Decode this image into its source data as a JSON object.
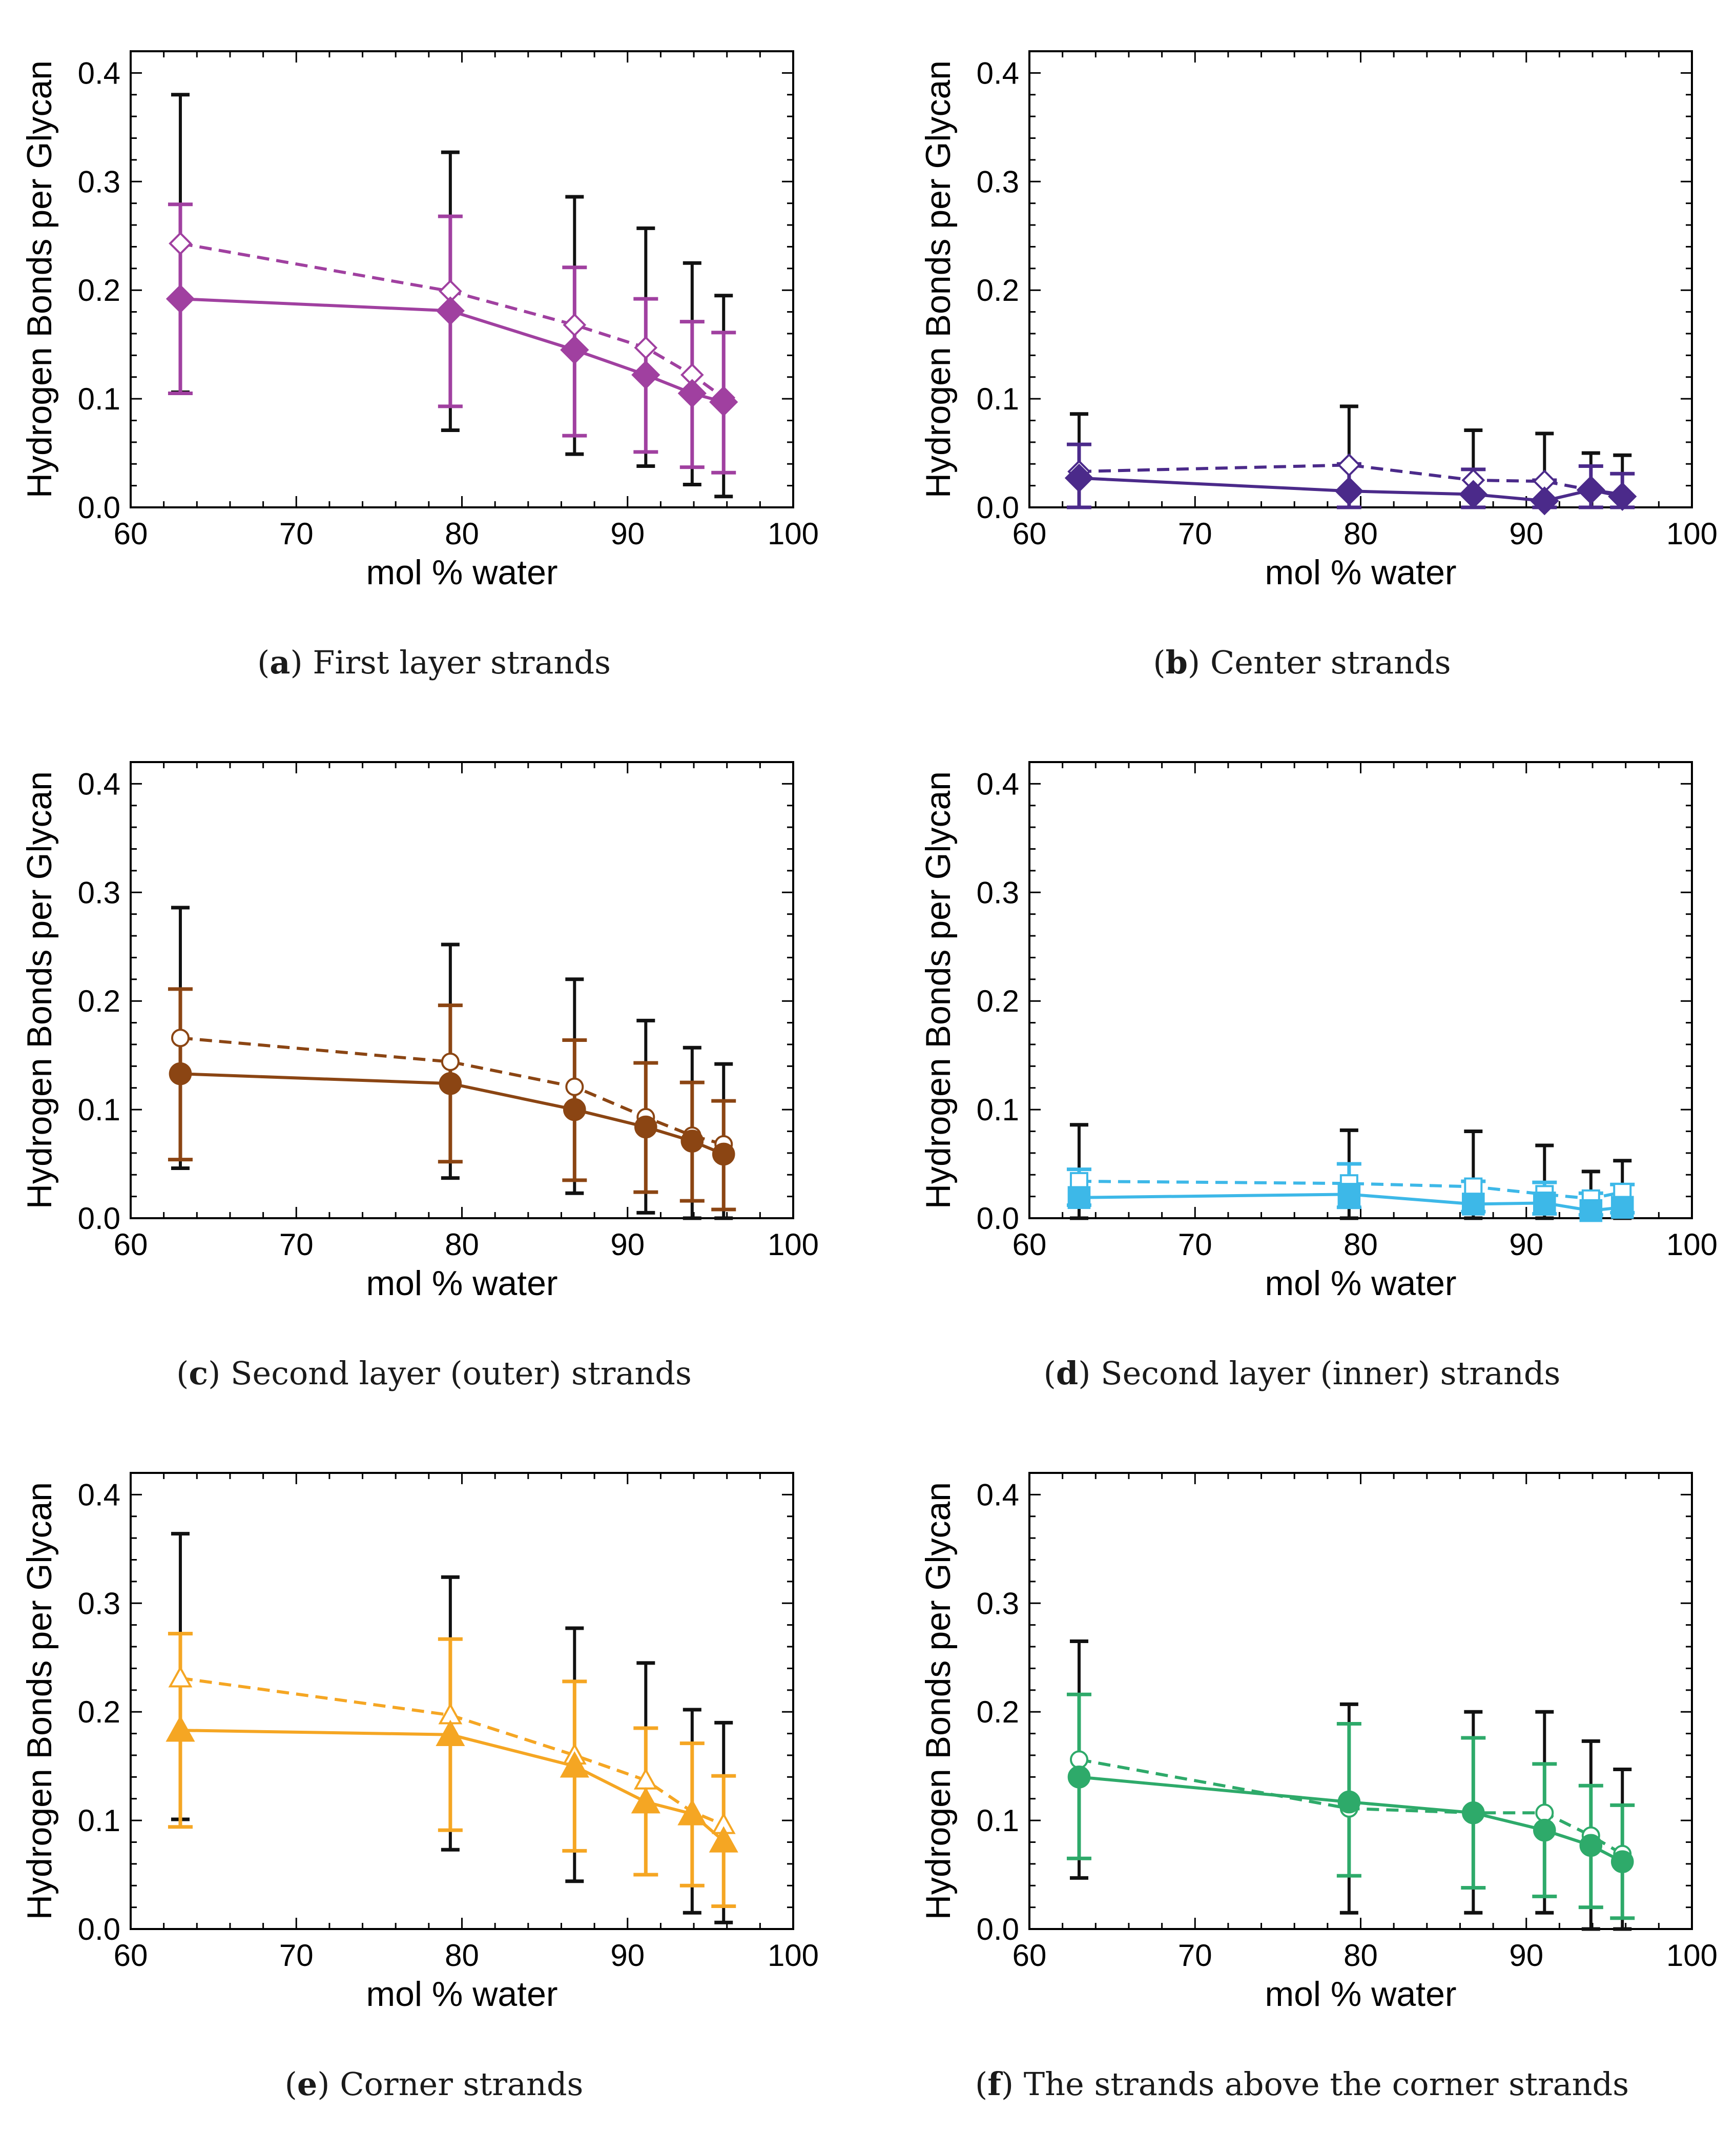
{
  "figure": {
    "xlabel": "mol % water",
    "ylabel": "Hydrogen Bonds per Glycan",
    "x_ticks": [
      "60",
      "70",
      "80",
      "90",
      "100"
    ],
    "y_ticks": [
      "0.0",
      "0.1",
      "0.2",
      "0.3",
      "0.4"
    ]
  },
  "chart_data": [
    {
      "id": "a",
      "type": "line",
      "letter": "a",
      "caption": "First layer strands",
      "xlabel": "mol % water",
      "ylabel": "Hydrogen Bonds per Glycan",
      "xlim": [
        60,
        100
      ],
      "ylim": [
        0,
        0.42
      ],
      "marker": "diamond",
      "color": "#a040a0",
      "x": [
        63,
        79.3,
        86.8,
        91.1,
        93.9,
        95.8
      ],
      "series": [
        {
          "name": "solid",
          "style": "solid",
          "filled": true,
          "values": [
            0.192,
            0.181,
            0.145,
            0.122,
            0.105,
            0.097
          ],
          "err_low": [
            0.106,
            0.071,
            0.049,
            0.038,
            0.021,
            0.01
          ],
          "err_high": [
            0.38,
            0.327,
            0.286,
            0.257,
            0.225,
            0.195
          ]
        },
        {
          "name": "dashed",
          "style": "dashed",
          "filled": false,
          "values": [
            0.243,
            0.199,
            0.168,
            0.147,
            0.122,
            0.101
          ],
          "err_low": [
            0.105,
            0.093,
            0.066,
            0.051,
            0.037,
            0.032
          ],
          "err_high": [
            0.279,
            0.268,
            0.221,
            0.192,
            0.171,
            0.161
          ]
        }
      ]
    },
    {
      "id": "b",
      "type": "line",
      "letter": "b",
      "caption": "Center strands",
      "xlabel": "mol % water",
      "ylabel": "Hydrogen Bonds per Glycan",
      "xlim": [
        60,
        100
      ],
      "ylim": [
        0,
        0.42
      ],
      "marker": "diamond",
      "color": "#4b2a8a",
      "x": [
        63,
        79.3,
        86.8,
        91.1,
        93.9,
        95.8
      ],
      "series": [
        {
          "name": "solid",
          "style": "solid",
          "filled": true,
          "values": [
            0.027,
            0.015,
            0.012,
            0.006,
            0.016,
            0.01
          ],
          "err_low": [
            0.0,
            0.0,
            0.0,
            0.0,
            0.0,
            0.0
          ],
          "err_high": [
            0.086,
            0.093,
            0.071,
            0.068,
            0.05,
            0.048
          ]
        },
        {
          "name": "dashed",
          "style": "dashed",
          "filled": false,
          "values": [
            0.033,
            0.039,
            0.025,
            0.024,
            0.016,
            0.012
          ],
          "err_low": [
            0.0,
            0.0,
            0.0,
            0.0,
            0.0,
            0.0
          ],
          "err_high": [
            0.058,
            0.04,
            0.035,
            0.025,
            0.038,
            0.031
          ]
        }
      ]
    },
    {
      "id": "c",
      "type": "line",
      "letter": "c",
      "caption": "Second layer (outer) strands",
      "xlabel": "mol % water",
      "ylabel": "Hydrogen Bonds per Glycan",
      "xlim": [
        60,
        100
      ],
      "ylim": [
        0,
        0.42
      ],
      "marker": "circle",
      "color": "#8b4513",
      "x": [
        63,
        79.3,
        86.8,
        91.1,
        93.9,
        95.8
      ],
      "series": [
        {
          "name": "solid",
          "style": "solid",
          "filled": true,
          "values": [
            0.133,
            0.124,
            0.1,
            0.084,
            0.071,
            0.059
          ],
          "err_low": [
            0.046,
            0.037,
            0.023,
            0.005,
            0.0,
            0.0
          ],
          "err_high": [
            0.286,
            0.252,
            0.22,
            0.182,
            0.157,
            0.142
          ]
        },
        {
          "name": "dashed",
          "style": "dashed",
          "filled": false,
          "values": [
            0.166,
            0.144,
            0.121,
            0.093,
            0.076,
            0.068
          ],
          "err_low": [
            0.054,
            0.052,
            0.035,
            0.024,
            0.016,
            0.008
          ],
          "err_high": [
            0.211,
            0.196,
            0.164,
            0.143,
            0.125,
            0.108
          ]
        }
      ]
    },
    {
      "id": "d",
      "type": "line",
      "letter": "d",
      "caption": "Second layer (inner) strands",
      "xlabel": "mol % water",
      "ylabel": "Hydrogen Bonds per Glycan",
      "xlim": [
        60,
        100
      ],
      "ylim": [
        0,
        0.42
      ],
      "marker": "square",
      "color": "#3db8e8",
      "x": [
        63,
        79.3,
        86.8,
        91.1,
        93.9,
        95.8
      ],
      "series": [
        {
          "name": "solid",
          "style": "solid",
          "filled": true,
          "values": [
            0.019,
            0.022,
            0.013,
            0.014,
            0.007,
            0.01
          ],
          "err_low": [
            0.0,
            0.0,
            0.0,
            0.0,
            0.0,
            0.0
          ],
          "err_high": [
            0.086,
            0.081,
            0.08,
            0.067,
            0.043,
            0.053
          ]
        },
        {
          "name": "dashed",
          "style": "dashed",
          "filled": false,
          "values": [
            0.034,
            0.032,
            0.029,
            0.022,
            0.018,
            0.024
          ],
          "err_low": [
            0.012,
            0.01,
            0.006,
            0.004,
            0.003,
            0.005
          ],
          "err_high": [
            0.045,
            0.05,
            0.034,
            0.033,
            0.023,
            0.031
          ]
        }
      ]
    },
    {
      "id": "e",
      "type": "line",
      "letter": "e",
      "caption": "Corner strands",
      "xlabel": "mol % water",
      "ylabel": "Hydrogen Bonds per Glycan",
      "xlim": [
        60,
        100
      ],
      "ylim": [
        0,
        0.42
      ],
      "marker": "triangle",
      "color": "#f5a623",
      "x": [
        63,
        79.3,
        86.8,
        91.1,
        93.9,
        95.8
      ],
      "series": [
        {
          "name": "solid",
          "style": "solid",
          "filled": true,
          "values": [
            0.183,
            0.179,
            0.15,
            0.117,
            0.106,
            0.081
          ],
          "err_low": [
            0.101,
            0.073,
            0.044,
            0.05,
            0.015,
            0.006
          ],
          "err_high": [
            0.364,
            0.324,
            0.277,
            0.245,
            0.202,
            0.19
          ]
        },
        {
          "name": "dashed",
          "style": "dashed",
          "filled": false,
          "values": [
            0.231,
            0.197,
            0.16,
            0.137,
            0.108,
            0.096
          ],
          "err_low": [
            0.094,
            0.091,
            0.072,
            0.05,
            0.04,
            0.021
          ],
          "err_high": [
            0.272,
            0.267,
            0.228,
            0.185,
            0.171,
            0.141
          ]
        }
      ]
    },
    {
      "id": "f",
      "type": "line",
      "letter": "f",
      "caption": "The strands above the corner strands",
      "xlabel": "mol % water",
      "ylabel": "Hydrogen Bonds per Glycan",
      "xlim": [
        60,
        100
      ],
      "ylim": [
        0,
        0.42
      ],
      "marker": "circle",
      "color": "#2eaa6a",
      "x": [
        63,
        79.3,
        86.8,
        91.1,
        93.9,
        95.8
      ],
      "series": [
        {
          "name": "solid",
          "style": "solid",
          "filled": true,
          "values": [
            0.14,
            0.117,
            0.107,
            0.091,
            0.077,
            0.062
          ],
          "err_low": [
            0.047,
            0.015,
            0.015,
            0.015,
            0.0,
            0.0
          ],
          "err_high": [
            0.265,
            0.207,
            0.2,
            0.2,
            0.173,
            0.147
          ]
        },
        {
          "name": "dashed",
          "style": "dashed",
          "filled": false,
          "values": [
            0.156,
            0.111,
            0.107,
            0.107,
            0.086,
            0.069
          ],
          "err_low": [
            0.065,
            0.049,
            0.038,
            0.03,
            0.02,
            0.01
          ],
          "err_high": [
            0.216,
            0.189,
            0.176,
            0.152,
            0.132,
            0.114
          ]
        }
      ]
    }
  ]
}
